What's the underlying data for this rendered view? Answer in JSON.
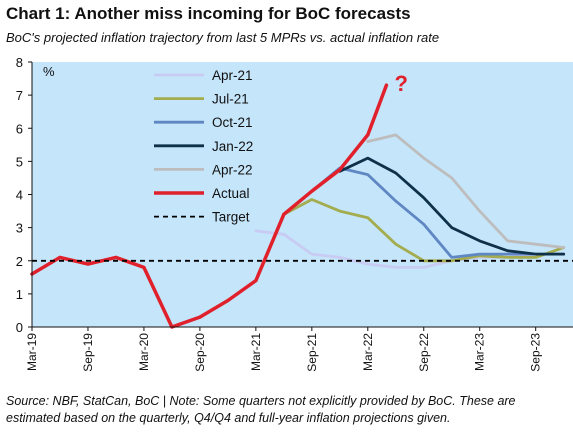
{
  "title": "Chart 1: Another miss incoming for BoC forecasts",
  "subtitle": "BoC's projected inflation trajectory from last 5 MPRs vs. actual inflation rate",
  "note": "Source: NBF, StatCan, BoC | Note: Some quarters not explicitly provided by BoC. These are estimated based on the quarterly, Q4/Q4 and full-year inflation projections given.",
  "chart_data": {
    "type": "line",
    "title": "Chart 1: Another miss incoming for BoC forecasts",
    "subtitle": "BoC's projected inflation trajectory from last 5 MPRs vs. actual inflation rate",
    "ylabel": "%",
    "ylim": [
      0,
      8
    ],
    "yticks": [
      "0",
      "1",
      "2",
      "3",
      "4",
      "5",
      "6",
      "7",
      "8"
    ],
    "xlim": [
      "2019-03",
      "2024-01"
    ],
    "xticks": [
      "Mar-19",
      "Sep-19",
      "Mar-20",
      "Sep-20",
      "Mar-21",
      "Sep-21",
      "Mar-22",
      "Sep-22",
      "Mar-23",
      "Sep-23"
    ],
    "grid": false,
    "legend": "top-center",
    "annotation": "?",
    "series": [
      {
        "name": "Apr-21",
        "color": "#c8cbf2",
        "x": [
          "2021-03",
          "2021-06",
          "2021-09",
          "2021-12",
          "2022-03",
          "2022-06",
          "2022-09",
          "2022-12",
          "2023-03",
          "2023-06",
          "2023-09",
          "2023-12"
        ],
        "values": [
          2.9,
          2.8,
          2.2,
          2.1,
          1.9,
          1.8,
          1.8,
          2.0,
          2.1,
          2.1,
          2.2,
          2.2
        ]
      },
      {
        "name": "Jul-21",
        "color": "#a3ac4e",
        "x": [
          "2021-06",
          "2021-09",
          "2021-12",
          "2022-03",
          "2022-06",
          "2022-09",
          "2022-12",
          "2023-03",
          "2023-06",
          "2023-09",
          "2023-12"
        ],
        "values": [
          3.4,
          3.85,
          3.5,
          3.3,
          2.5,
          2.0,
          2.0,
          2.15,
          2.1,
          2.1,
          2.4
        ]
      },
      {
        "name": "Oct-21",
        "color": "#5f87c3",
        "x": [
          "2021-09",
          "2021-12",
          "2022-03",
          "2022-06",
          "2022-09",
          "2022-12",
          "2023-03",
          "2023-06",
          "2023-09",
          "2023-12"
        ],
        "values": [
          4.1,
          4.8,
          4.6,
          3.8,
          3.1,
          2.1,
          2.2,
          2.2,
          2.2,
          2.2
        ]
      },
      {
        "name": "Jan-22",
        "color": "#0e3049",
        "x": [
          "2021-12",
          "2022-03",
          "2022-06",
          "2022-09",
          "2022-12",
          "2023-03",
          "2023-06",
          "2023-09",
          "2023-12"
        ],
        "values": [
          4.7,
          5.1,
          4.65,
          3.9,
          3.0,
          2.6,
          2.3,
          2.2,
          2.2
        ]
      },
      {
        "name": "Apr-22",
        "color": "#bdbdbd",
        "x": [
          "2022-03",
          "2022-06",
          "2022-09",
          "2022-12",
          "2023-03",
          "2023-06",
          "2023-09",
          "2023-12"
        ],
        "values": [
          5.6,
          5.8,
          5.1,
          4.5,
          3.5,
          2.6,
          2.5,
          2.4
        ]
      },
      {
        "name": "Actual",
        "color": "#e0202b",
        "x": [
          "2019-03",
          "2019-06",
          "2019-09",
          "2019-12",
          "2020-03",
          "2020-06",
          "2020-09",
          "2020-12",
          "2021-03",
          "2021-06",
          "2021-09",
          "2021-12",
          "2022-03",
          "2022-05"
        ],
        "values": [
          1.6,
          2.1,
          1.9,
          2.1,
          1.8,
          0.0,
          0.3,
          0.8,
          1.4,
          3.4,
          4.1,
          4.75,
          5.8,
          7.3
        ]
      },
      {
        "name": "Target",
        "color": "#000000",
        "dashed": true,
        "x": [
          "2019-03",
          "2024-01"
        ],
        "values": [
          2,
          2
        ]
      }
    ]
  }
}
